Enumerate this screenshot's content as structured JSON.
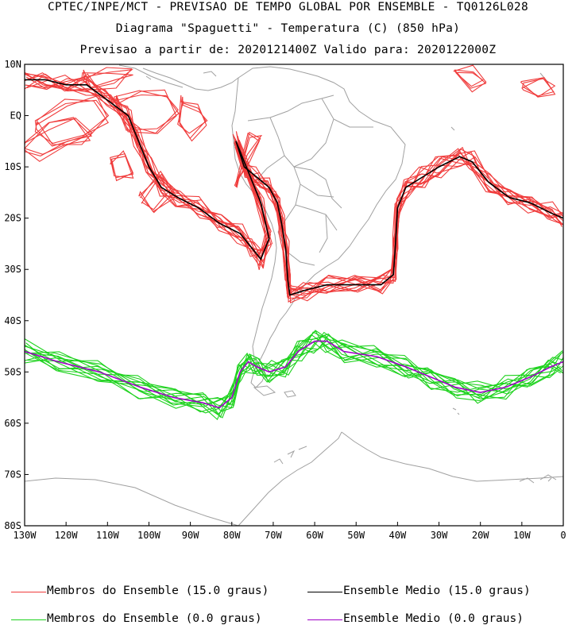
{
  "header": {
    "title_line1": "CPTEC/INPE/MCT - PREVISAO DE TEMPO GLOBAL POR ENSEMBLE - TQ0126L028",
    "title_line2": "Diagrama \"Spaguetti\" - Temperatura (C) (850 hPa)",
    "title_line3": "Previsao a partir de: 2020121400Z  Valido para: 2020122000Z"
  },
  "map": {
    "lon_range": [
      -130,
      0
    ],
    "lat_range": [
      -80,
      10
    ],
    "lat_ticks": [
      "10N",
      "EQ",
      "10S",
      "20S",
      "30S",
      "40S",
      "50S",
      "60S",
      "70S",
      "80S"
    ],
    "lon_ticks": [
      "130W",
      "120W",
      "110W",
      "100W",
      "90W",
      "80W",
      "70W",
      "60W",
      "50W",
      "40W",
      "30W",
      "20W",
      "10W",
      "0"
    ]
  },
  "legend": {
    "members_15": "Membros do Ensemble (15.0 graus)",
    "mean_15": "Ensemble Medio (15.0 graus)",
    "members_0": "Membros do Ensemble (0.0 graus)",
    "mean_0": "Ensemble Medio (0.0 graus)"
  },
  "colors": {
    "members_15": "#f03c3c",
    "mean_15": "#000000",
    "members_0": "#1ed21e",
    "mean_0": "#a000c8",
    "coast": "#a0a0a0"
  }
}
